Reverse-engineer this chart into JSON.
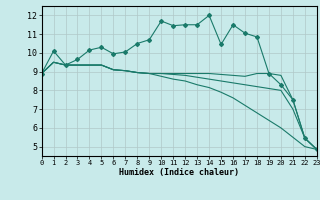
{
  "bg_color": "#c8eaea",
  "grid_color": "#b0c8c8",
  "line_color": "#1a7a6a",
  "xlabel": "Humidex (Indice chaleur)",
  "xlim": [
    0,
    23
  ],
  "ylim": [
    4.5,
    12.5
  ],
  "yticks": [
    5,
    6,
    7,
    8,
    9,
    10,
    11,
    12
  ],
  "xticks": [
    0,
    1,
    2,
    3,
    4,
    5,
    6,
    7,
    8,
    9,
    10,
    11,
    12,
    13,
    14,
    15,
    16,
    17,
    18,
    19,
    20,
    21,
    22,
    23
  ],
  "series1_x": [
    0,
    1,
    2,
    3,
    4,
    5,
    6,
    7,
    8,
    9,
    10,
    11,
    12,
    13,
    14,
    15,
    16,
    17,
    18,
    19,
    20,
    21,
    22,
    23
  ],
  "series1_y": [
    8.9,
    10.1,
    9.35,
    9.65,
    10.15,
    10.3,
    9.95,
    10.05,
    10.5,
    10.7,
    11.7,
    11.45,
    11.5,
    11.5,
    12.0,
    10.45,
    11.5,
    11.05,
    10.85,
    8.9,
    8.3,
    7.5,
    5.45,
    4.85
  ],
  "series2_x": [
    0,
    1,
    2,
    3,
    4,
    5,
    6,
    7,
    8,
    9,
    10,
    11,
    12,
    13,
    14,
    15,
    16,
    17,
    18,
    19,
    20,
    21,
    22,
    23
  ],
  "series2_y": [
    8.9,
    9.5,
    9.35,
    9.35,
    9.35,
    9.35,
    9.1,
    9.05,
    8.95,
    8.9,
    8.9,
    8.9,
    8.9,
    8.9,
    8.9,
    8.85,
    8.8,
    8.75,
    8.9,
    8.9,
    8.8,
    7.5,
    5.45,
    4.85
  ],
  "series3_x": [
    0,
    1,
    2,
    3,
    4,
    5,
    6,
    7,
    8,
    9,
    10,
    11,
    12,
    13,
    14,
    15,
    16,
    17,
    18,
    19,
    20,
    21,
    22,
    23
  ],
  "series3_y": [
    8.9,
    9.5,
    9.35,
    9.35,
    9.35,
    9.35,
    9.1,
    9.05,
    8.95,
    8.9,
    8.9,
    8.85,
    8.8,
    8.7,
    8.6,
    8.5,
    8.4,
    8.3,
    8.2,
    8.1,
    8.0,
    7.0,
    5.45,
    4.85
  ],
  "series4_x": [
    0,
    1,
    2,
    3,
    4,
    5,
    6,
    7,
    8,
    9,
    10,
    11,
    12,
    13,
    14,
    15,
    16,
    17,
    18,
    19,
    20,
    21,
    22,
    23
  ],
  "series4_y": [
    8.9,
    9.5,
    9.35,
    9.35,
    9.35,
    9.35,
    9.1,
    9.05,
    8.95,
    8.9,
    8.75,
    8.6,
    8.5,
    8.3,
    8.15,
    7.9,
    7.6,
    7.2,
    6.8,
    6.4,
    6.0,
    5.5,
    5.0,
    4.85
  ],
  "tick_fontsize": 5,
  "xlabel_fontsize": 6
}
